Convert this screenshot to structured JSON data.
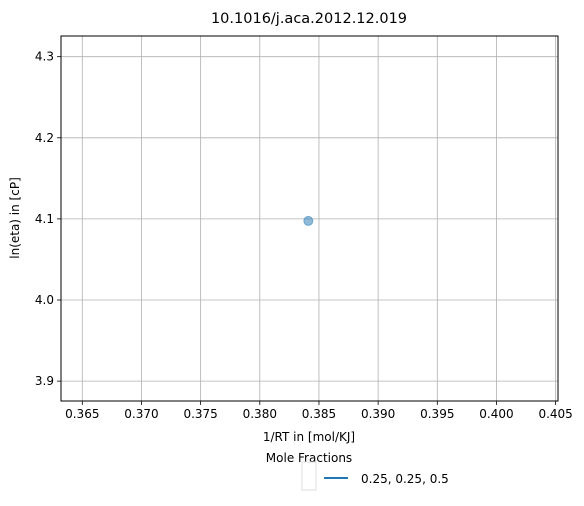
{
  "chart_data": {
    "type": "scatter",
    "title": "10.1016/j.aca.2012.12.019",
    "xlabel": "1/RT in [mol/KJ]",
    "ylabel": "ln(eta) in [cP]",
    "xlim": [
      0.3632,
      0.4052
    ],
    "ylim": [
      3.8755,
      4.3255
    ],
    "x_ticks": [
      0.365,
      0.37,
      0.375,
      0.38,
      0.385,
      0.39,
      0.395,
      0.4,
      0.405
    ],
    "x_tick_labels": [
      "0.365",
      "0.370",
      "0.375",
      "0.380",
      "0.385",
      "0.390",
      "0.395",
      "0.400",
      "0.405"
    ],
    "y_ticks": [
      3.9,
      4.0,
      4.1,
      4.2,
      4.3
    ],
    "y_tick_labels": [
      "3.9",
      "4.0",
      "4.1",
      "4.2",
      "4.3"
    ],
    "grid": true,
    "series": [
      {
        "name": "0.25, 0.25, 0.5",
        "color": "#1f77b4",
        "points": [
          {
            "x": 0.3841,
            "y": 4.0975
          }
        ]
      }
    ],
    "legend": {
      "title": "Mole Fractions",
      "placement": "below the plot",
      "entries": [
        "0.25, 0.25, 0.5"
      ]
    }
  }
}
